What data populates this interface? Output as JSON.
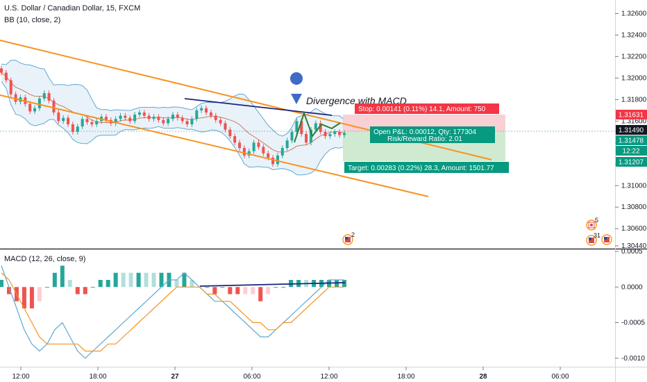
{
  "header": {
    "symbol_title": "U.S. Dollar / Canadian Dollar, 15, FXCM",
    "bb_label": "BB (10, close, 2)",
    "macd_label": "MACD (12, 26, close, 9)"
  },
  "colors": {
    "up": "#26a69a",
    "down": "#ef5350",
    "channel": "#f7931e",
    "trendline": "#1a237e",
    "bb": "#5fa8d3",
    "bb_fill": "#dbeaf5",
    "bb_basis": "#c97b5c",
    "macd_line": "#5fa8d3",
    "signal_line": "#f7931e",
    "stop_zone": "#f8c8cc",
    "target_zone": "#c8e6c9",
    "stop_badge": "#f23645",
    "target_badge": "#089981",
    "pnl_badge": "#089981"
  },
  "price_axis": {
    "ticks": [
      "1.32600",
      "1.32400",
      "1.32200",
      "1.32000",
      "1.31800",
      "1.31600",
      "1.31400",
      "1.31200",
      "1.31000",
      "1.30800",
      "1.30600",
      "1.30440"
    ],
    "badges": [
      {
        "label": "1.31631",
        "color": "#f23645"
      },
      {
        "label": "1.31490",
        "color": "#131722"
      },
      {
        "label": "1.31478",
        "color": "#089981"
      },
      {
        "label": "12:22",
        "color": "#089981"
      },
      {
        "label": "1.31207",
        "color": "#089981"
      }
    ]
  },
  "macd_axis": {
    "ticks": [
      "0.0005",
      "0.0000",
      "-0.0005",
      "-0.0010"
    ]
  },
  "time_axis": {
    "ticks": [
      "12:00",
      "18:00",
      "27",
      "06:00",
      "12:00",
      "18:00",
      "28",
      "06:00"
    ]
  },
  "annotation": {
    "text": "Divergence with MACD"
  },
  "position": {
    "stop_text": "Stop: 0.00141 (0.11%) 14.1, Amount: 750",
    "pnl_line1": "Open P&L: 0.00012, Qty: 177304",
    "pnl_line2": "Risk/Reward Ratio: 2.01",
    "target_text": "Target: 0.00283 (0.22%) 28.3, Amount: 1501.77"
  },
  "events": [
    {
      "label": "2"
    },
    {
      "label": "5"
    },
    {
      "label": "31"
    }
  ],
  "chart_data": {
    "type": "candlestick",
    "price_series": {
      "name": "USDCAD 15",
      "close": [
        1.3205,
        1.3198,
        1.3185,
        1.3178,
        1.3182,
        1.3176,
        1.3169,
        1.3172,
        1.3181,
        1.3186,
        1.3179,
        1.3168,
        1.316,
        1.3163,
        1.3157,
        1.315,
        1.3155,
        1.3162,
        1.3159,
        1.3157,
        1.316,
        1.3164,
        1.3161,
        1.3158,
        1.3162,
        1.3165,
        1.3163,
        1.316,
        1.3166,
        1.3168,
        1.3165,
        1.3162,
        1.3164,
        1.3161,
        1.3158,
        1.3162,
        1.3166,
        1.3163,
        1.316,
        1.3157,
        1.3162,
        1.317,
        1.3172,
        1.3168,
        1.3165,
        1.3161,
        1.3158,
        1.3152,
        1.3146,
        1.314,
        1.3135,
        1.3128,
        1.3132,
        1.314,
        1.3136,
        1.313,
        1.3126,
        1.312,
        1.3128,
        1.3135,
        1.3142,
        1.315,
        1.316,
        1.3148,
        1.314,
        1.3152,
        1.3158,
        1.315,
        1.3146,
        1.3148,
        1.315,
        1.3147,
        1.3149
      ]
    },
    "macd_series": [
      {
        "name": "MACD",
        "values": [
          0.0003,
          0.0,
          -0.0003,
          -0.0006,
          -0.0008,
          -0.0009,
          -0.0008,
          -0.0006,
          -0.0005,
          -0.0007,
          -0.0009,
          -0.001,
          -0.0009,
          -0.0008,
          -0.0007,
          -0.0006,
          -0.0005,
          -0.0004,
          -0.0003,
          -0.0002,
          -0.0001,
          0.0,
          0.0001,
          0.0001,
          0.0002,
          0.0001,
          0.0,
          -0.0001,
          -0.0002,
          -0.0002,
          -0.0003,
          -0.0004,
          -0.0005,
          -0.0006,
          -0.0007,
          -0.0007,
          -0.0006,
          -0.0005,
          -0.0004,
          -0.0003,
          -0.0002,
          -0.0001,
          0.0,
          0.0001,
          0.0001,
          0.0001
        ]
      },
      {
        "name": "Signal",
        "values": [
          0.0002,
          0.0001,
          -0.0001,
          -0.0003,
          -0.0005,
          -0.0007,
          -0.0008,
          -0.0008,
          -0.0008,
          -0.0008,
          -0.0008,
          -0.0009,
          -0.0009,
          -0.0009,
          -0.0008,
          -0.0008,
          -0.0007,
          -0.0006,
          -0.0005,
          -0.0004,
          -0.0003,
          -0.0002,
          -0.0001,
          0.0,
          0.0,
          0.0,
          0.0,
          -0.0001,
          -0.0001,
          -0.0002,
          -0.0002,
          -0.0003,
          -0.0004,
          -0.0005,
          -0.0005,
          -0.0006,
          -0.0006,
          -0.0005,
          -0.0005,
          -0.0004,
          -0.0003,
          -0.0002,
          -0.0001,
          0.0,
          0.0,
          0.0
        ]
      }
    ],
    "price_range": [
      1.3044,
      1.327
    ],
    "macd_range": [
      -0.0011,
      0.0005
    ],
    "stop_price": 1.31631,
    "entry_price": 1.3149,
    "target_price": 1.31207,
    "current_price": 1.31478
  }
}
